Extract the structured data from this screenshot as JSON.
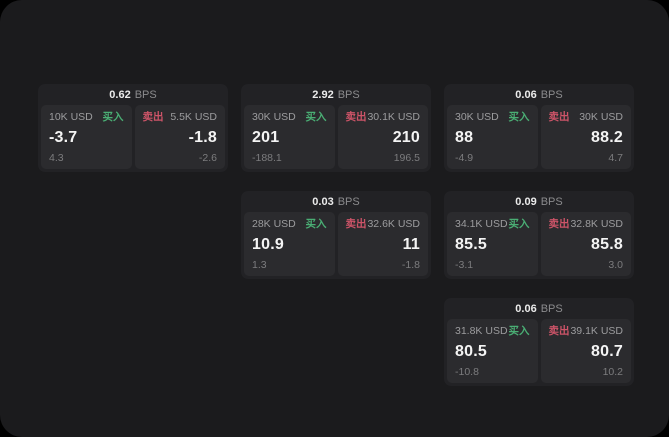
{
  "page": {
    "background": "#000000",
    "container_background": "#1b1b1d"
  },
  "labels": {
    "buy": "买入",
    "sell": "卖出",
    "bps_unit": "BPS"
  },
  "colors": {
    "buy_green": "#4aae74",
    "sell_red": "#cd5468",
    "card_bg": "#222225",
    "panel_bg": "#2b2b2e"
  },
  "cards": [
    {
      "bps": "0.62",
      "buy": {
        "size": "10K USD",
        "price": "-3.7",
        "change": "4.3"
      },
      "sell": {
        "size": "5.5K USD",
        "price": "-1.8",
        "change": "-2.6"
      }
    },
    {
      "bps": "2.92",
      "buy": {
        "size": "30K USD",
        "price": "201",
        "change": "-188.1"
      },
      "sell": {
        "size": "30.1K USD",
        "price": "210",
        "change": "196.5"
      }
    },
    {
      "bps": "0.06",
      "buy": {
        "size": "30K USD",
        "price": "88",
        "change": "-4.9"
      },
      "sell": {
        "size": "30K USD",
        "price": "88.2",
        "change": "4.7"
      }
    },
    {
      "bps": "0.03",
      "buy": {
        "size": "28K USD",
        "price": "10.9",
        "change": "1.3"
      },
      "sell": {
        "size": "32.6K USD",
        "price": "11",
        "change": "-1.8"
      }
    },
    {
      "bps": "0.09",
      "buy": {
        "size": "34.1K USD",
        "price": "85.5",
        "change": "-3.1"
      },
      "sell": {
        "size": "32.8K USD",
        "price": "85.8",
        "change": "3.0"
      }
    },
    {
      "bps": "0.06",
      "buy": {
        "size": "31.8K USD",
        "price": "80.5",
        "change": "-10.8"
      },
      "sell": {
        "size": "39.1K USD",
        "price": "80.7",
        "change": "10.2"
      }
    }
  ]
}
